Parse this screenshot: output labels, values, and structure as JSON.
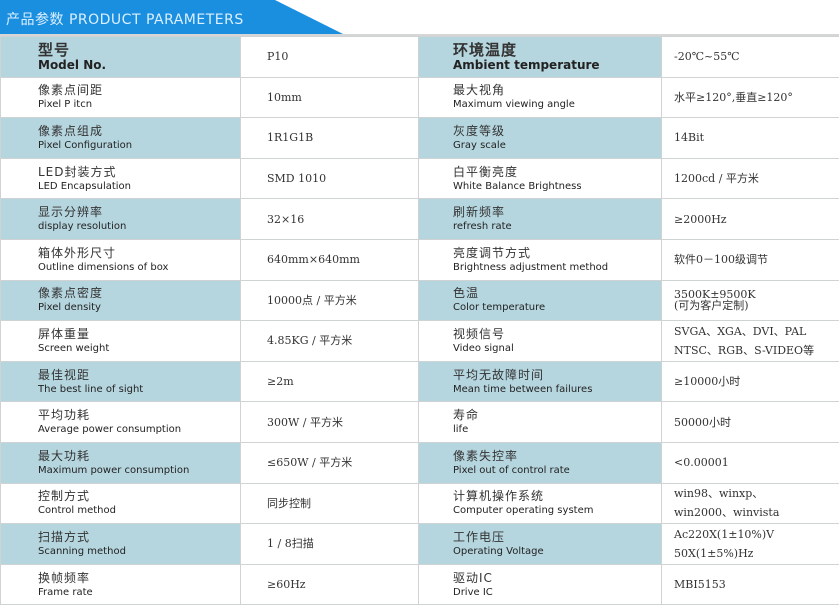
{
  "header": {
    "title": "产品参数 PRODUCT PARAMETERS",
    "accent_color": "#1a8fe0",
    "label_shade_color": "#b6d6df"
  },
  "rows": [
    {
      "left": {
        "cn": "型号",
        "en": "Model No.",
        "value": "P10"
      },
      "right": {
        "cn": "环境温度",
        "en": "Ambient temperature",
        "value": "-20℃~55℃"
      }
    },
    {
      "left": {
        "cn": "像素点间距",
        "en": "Pixel P itcn",
        "value": "10mm"
      },
      "right": {
        "cn": "最大视角",
        "en": "Maximum viewing angle",
        "value": "水平≥120°,垂直≥120°"
      }
    },
    {
      "left": {
        "cn": "像素点组成",
        "en": "Pixel  Configuration",
        "value": "1R1G1B"
      },
      "right": {
        "cn": "灰度等级",
        "en": "Gray scale",
        "value": "14Bit"
      }
    },
    {
      "left": {
        "cn": "LED封装方式",
        "en": "LED  Encapsulation",
        "value": "SMD 1010"
      },
      "right": {
        "cn": "白平衡亮度",
        "en": "White Balance Brightness",
        "value": "1200cd / 平方米"
      }
    },
    {
      "left": {
        "cn": "显示分辨率",
        "en": "display resolution",
        "value": "32×16"
      },
      "right": {
        "cn": "刷新频率",
        "en": "refresh rate",
        "value": "≥2000Hz"
      }
    },
    {
      "left": {
        "cn": "箱体外形尺寸",
        "en": "Outline dimensions of box",
        "value": "640mm×640mm"
      },
      "right": {
        "cn": "亮度调节方式",
        "en": "Brightness adjustment method",
        "value": "软件0－100级调节"
      }
    },
    {
      "left": {
        "cn": "像素点密度",
        "en": "Pixel density",
        "value": "10000点 / 平方米"
      },
      "right": {
        "cn": "色温",
        "en": "Color temperature",
        "value": "3500K±9500K\n(可为客户定制)"
      }
    },
    {
      "left": {
        "cn": "屏体重量",
        "en": "Screen weight",
        "value": "4.85KG / 平方米"
      },
      "right": {
        "cn": "视频信号",
        "en": "Video signal",
        "value": " SVGA、XGA、DVI、PAL\nNTSC、RGB、S-VIDEO等"
      }
    },
    {
      "left": {
        "cn": "最佳视距",
        "en": "The best line of sight",
        "value": "≥2m"
      },
      "right": {
        "cn": "平均无故障时间",
        "en": "Mean time between failures",
        "value": "≥10000小时"
      }
    },
    {
      "left": {
        "cn": "平均功耗",
        "en": "Average power consumption",
        "value": "300W / 平方米"
      },
      "right": {
        "cn": "寿命",
        "en": "life",
        "value": "50000小时"
      }
    },
    {
      "left": {
        "cn": "最大功耗",
        "en": "Maximum power consumption",
        "value": "≤650W / 平方米"
      },
      "right": {
        "cn": "像素失控率",
        "en": "Pixel out of control rate",
        "value": "<0.00001"
      }
    },
    {
      "left": {
        "cn": "控制方式",
        "en": "Control method",
        "value": "同步控制"
      },
      "right": {
        "cn": "计算机操作系统",
        "en": "Computer operating system",
        "value": "    win98、winxp、\nwin2000、winvista"
      }
    },
    {
      "left": {
        "cn": "扫描方式",
        "en": "Scanning method",
        "value": "1 / 8扫描"
      },
      "right": {
        "cn": "工作电压",
        "en": "Operating Voltage",
        "value": "Ac220X(1±10%)V\n50X(1±5%)Hz"
      }
    },
    {
      "left": {
        "cn": "换帧频率",
        "en": "Frame rate",
        "value": "≥60Hz"
      },
      "right": {
        "cn": "驱动IC",
        "en": "Drive IC",
        "value": "MBI5153"
      }
    }
  ]
}
